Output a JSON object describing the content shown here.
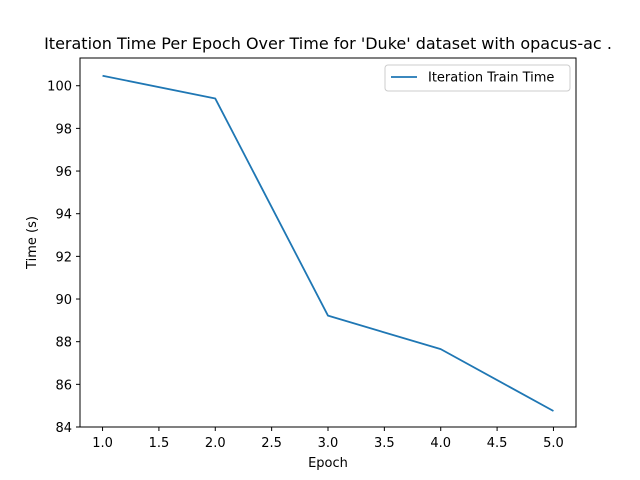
{
  "chart_data": {
    "type": "line",
    "title": "Iteration Time Per Epoch Over Time for 'Duke' dataset with opacus-ac .",
    "xlabel": "Epoch",
    "ylabel": "Time (s)",
    "x": [
      1.0,
      2.0,
      3.0,
      4.0,
      5.0
    ],
    "series": [
      {
        "name": "Iteration Train Time",
        "color": "#1f77b4",
        "values": [
          100.47,
          99.4,
          89.22,
          87.65,
          84.75
        ]
      }
    ],
    "xlim": [
      0.8,
      5.2
    ],
    "ylim": [
      84.0,
      101.3
    ],
    "xticks": [
      1.0,
      1.5,
      2.0,
      2.5,
      3.0,
      3.5,
      4.0,
      4.5,
      5.0
    ],
    "xtick_labels": [
      "1.0",
      "1.5",
      "2.0",
      "2.5",
      "3.0",
      "3.5",
      "4.0",
      "4.5",
      "5.0"
    ],
    "yticks": [
      84,
      86,
      88,
      90,
      92,
      94,
      96,
      98,
      100
    ],
    "ytick_labels": [
      "84",
      "86",
      "88",
      "90",
      "92",
      "94",
      "96",
      "98",
      "100"
    ],
    "grid": false,
    "legend_position": "upper right"
  }
}
